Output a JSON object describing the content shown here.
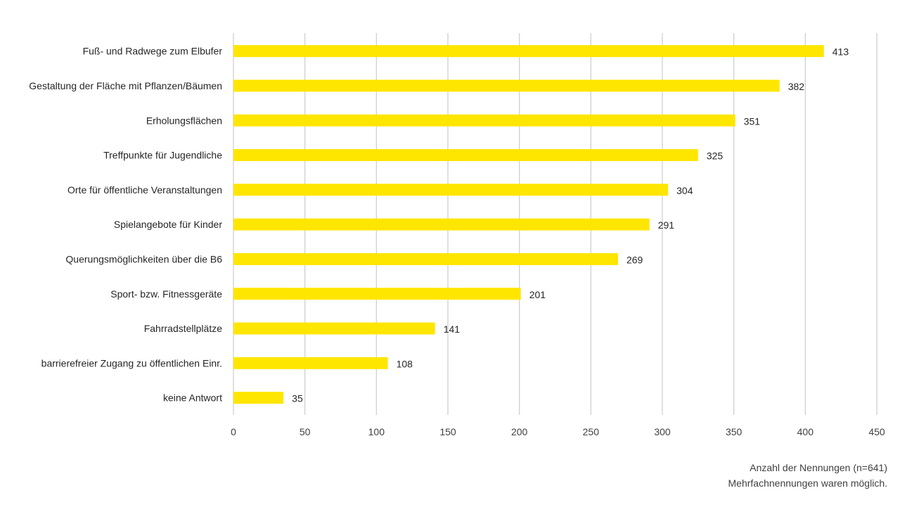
{
  "chart_data": {
    "type": "bar",
    "orientation": "horizontal",
    "categories": [
      "Fuß- und Radwege zum Elbufer",
      "Gestaltung der Fläche mit Pflanzen/Bäumen",
      "Erholungsflächen",
      "Treffpunkte für Jugendliche",
      "Orte für öffentliche Veranstaltungen",
      "Spielangebote für Kinder",
      "Querungsmöglichkeiten über die B6",
      "Sport- bzw. Fitnessgeräte",
      "Fahrradstellplätze",
      "barrierefreier Zugang zu öffentlichen Einr.",
      "keine Antwort"
    ],
    "values": [
      413,
      382,
      351,
      325,
      304,
      291,
      269,
      201,
      141,
      108,
      35
    ],
    "xlim": [
      0,
      450
    ],
    "xticks": [
      0,
      50,
      100,
      150,
      200,
      250,
      300,
      350,
      400,
      450
    ],
    "grid": "vertical",
    "bar_color": "#FFE600",
    "legend": "none"
  },
  "footnotes": {
    "line1": "Anzahl der Nennungen (n=641)",
    "line2": "Mehrfachnennungen waren möglich."
  }
}
